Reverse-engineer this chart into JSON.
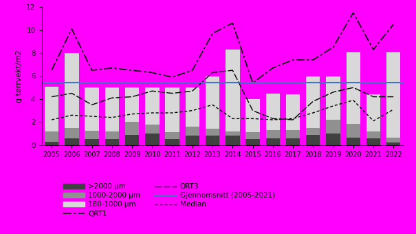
{
  "years": [
    2005,
    2006,
    2007,
    2008,
    2009,
    2010,
    2011,
    2012,
    2013,
    2014,
    2015,
    2016,
    2017,
    2018,
    2019,
    2020,
    2021,
    2022
  ],
  "bar_gt2000": [
    0.3,
    0.6,
    0.55,
    0.5,
    0.9,
    1.0,
    0.5,
    0.8,
    0.8,
    0.8,
    0.5,
    0.6,
    0.6,
    0.9,
    1.0,
    0.65,
    0.6,
    0.25
  ],
  "bar_1000_2000": [
    0.9,
    0.9,
    0.7,
    0.7,
    1.1,
    0.8,
    0.6,
    0.8,
    0.6,
    0.4,
    0.6,
    0.7,
    0.7,
    0.6,
    1.2,
    1.2,
    0.6,
    0.4
  ],
  "bar_180_1000": [
    3.9,
    6.5,
    3.75,
    3.8,
    3.0,
    3.2,
    3.9,
    3.4,
    4.6,
    7.1,
    2.9,
    3.2,
    3.1,
    4.5,
    3.8,
    6.2,
    3.2,
    7.4
  ],
  "line_QRT1": [
    6.5,
    10.1,
    6.5,
    6.7,
    6.5,
    6.3,
    5.9,
    6.5,
    9.7,
    10.6,
    5.4,
    6.7,
    7.4,
    7.4,
    8.5,
    11.5,
    8.3,
    10.5
  ],
  "line_QRT3": [
    4.2,
    4.5,
    3.5,
    4.1,
    4.2,
    4.7,
    4.5,
    4.7,
    6.3,
    6.5,
    3.0,
    2.3,
    2.2,
    3.8,
    4.6,
    5.0,
    4.2,
    4.2
  ],
  "line_Median": [
    2.2,
    2.6,
    2.5,
    2.4,
    2.7,
    2.8,
    2.8,
    3.0,
    3.5,
    2.3,
    2.3,
    2.2,
    2.3,
    2.8,
    3.4,
    3.9,
    2.1,
    3.1
  ],
  "gjennomsnitt": 5.42,
  "ylim": [
    0,
    12
  ],
  "yticks": [
    0,
    2,
    4,
    6,
    8,
    10,
    12
  ],
  "ylabel": "g tørrvekt/m2",
  "color_gt2000": "#404040",
  "color_1000_2000": "#909090",
  "color_180_1000": "#d8d8d8",
  "color_QRT1": "#000000",
  "color_QRT3": "#000000",
  "color_Median": "#000000",
  "color_gjennomsnitt": "#4472c4",
  "background_color": "#ff00ff",
  "label_gt2000": ">2000 μm",
  "label_1000_2000": "1000-2000 μm",
  "label_180_1000": "180-1000 μm",
  "label_QRT1": "QRT1",
  "label_QRT3": "QRT3",
  "label_Median": "Median",
  "label_gjennomsnitt": "Gjennomsnitt (2005-2021)"
}
